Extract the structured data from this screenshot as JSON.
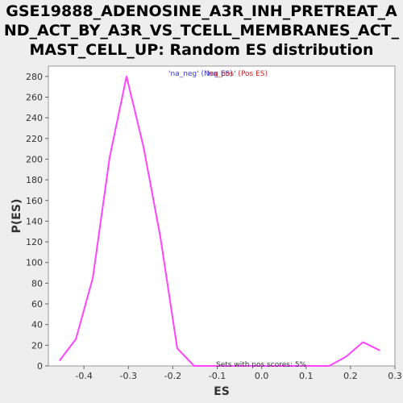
{
  "chart_data": {
    "type": "line",
    "title_lines": [
      "GSE19888_ADENOSINE_A3R_INH_PRETREAT_A",
      "ND_ACT_BY_A3R_VS_TCELL_MEMBRANES_ACT_",
      "MAST_CELL_UP: Random ES distribution"
    ],
    "xlabel": "ES",
    "ylabel": "P(ES)",
    "xlim": [
      -0.48,
      0.3
    ],
    "ylim": [
      0,
      290
    ],
    "x_ticks": [
      "-0.4",
      "-0.3",
      "-0.2",
      "-0.1",
      "0.0",
      "0.1",
      "0.2",
      "0.3"
    ],
    "x_tick_values": [
      -0.4,
      -0.3,
      -0.2,
      -0.1,
      0.0,
      0.1,
      0.2,
      0.3
    ],
    "y_ticks": [
      "0",
      "20",
      "40",
      "60",
      "80",
      "100",
      "120",
      "140",
      "160",
      "180",
      "200",
      "220",
      "240",
      "260",
      "280"
    ],
    "y_tick_values": [
      0,
      20,
      40,
      60,
      80,
      100,
      120,
      140,
      160,
      180,
      200,
      220,
      240,
      260,
      280
    ],
    "series": [
      {
        "color": "#ff44ff",
        "x": [
          -0.455,
          -0.418,
          -0.38,
          -0.342,
          -0.304,
          -0.266,
          -0.228,
          -0.19,
          -0.152,
          -0.114,
          -0.076,
          -0.038,
          0.0,
          0.038,
          0.076,
          0.114,
          0.152,
          0.19,
          0.228,
          0.266
        ],
        "y": [
          5,
          26,
          85,
          202,
          280,
          212,
          125,
          17,
          0,
          0,
          0,
          0,
          0,
          0,
          0,
          0,
          0,
          9,
          23,
          15
        ]
      }
    ],
    "legend": {
      "neg_label": "'na_neg' (Neg ES)",
      "pos_label": "'na_pos' (Pos ES)",
      "neg_color": "#3333cc",
      "pos_color": "#cc2222",
      "placement": "top-center"
    },
    "annotation": "Sets with pos scores: 5%",
    "grid": false
  }
}
